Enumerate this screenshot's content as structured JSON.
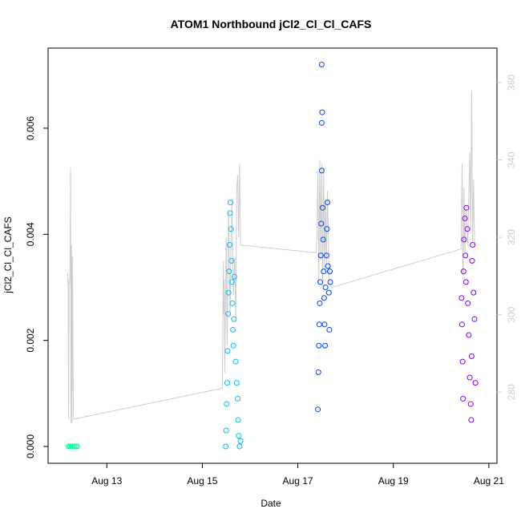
{
  "chart_data": {
    "type": "scatter",
    "title": "ATOM1 Northbound jCl2_Cl_Cl_CAFS",
    "x_label": "Date",
    "y_label": "jCl2_Cl_Cl_CAFS",
    "xlim": [
      11.77,
      21.17
    ],
    "xticks": [
      {
        "value": 13,
        "label": "Aug 13"
      },
      {
        "value": 15,
        "label": "Aug 15"
      },
      {
        "value": 17,
        "label": "Aug 17"
      },
      {
        "value": 19,
        "label": "Aug 19"
      },
      {
        "value": 21,
        "label": "Aug 21"
      }
    ],
    "ylim": [
      -0.000317,
      0.00751
    ],
    "yticks": [
      {
        "value": 0,
        "label": "0.000"
      },
      {
        "value": 0.002,
        "label": "0.002"
      },
      {
        "value": 0.004,
        "label": "0.004"
      },
      {
        "value": 0.006,
        "label": "0.006"
      }
    ],
    "y2lim": [
      261.6,
      368.9
    ],
    "y2ticks": [
      280,
      300,
      320,
      340,
      360
    ],
    "y2_color": "#cccccc",
    "series": [
      {
        "color": "#cccccc",
        "style": "line",
        "axis": "y2",
        "x": [
          12.18,
          12.19,
          12.2,
          12.21,
          12.22,
          12.23,
          12.24,
          12.25,
          12.26,
          12.27,
          12.28,
          12.3,
          15.42,
          15.44,
          15.45,
          15.46,
          15.47,
          15.5,
          15.52,
          15.55,
          15.58,
          15.6,
          15.62,
          15.65,
          15.68,
          15.7,
          15.72,
          15.74,
          15.76,
          15.78,
          15.8,
          17.38,
          17.4,
          17.42,
          17.44,
          17.46,
          17.48,
          17.5,
          17.52,
          17.54,
          17.56,
          17.58,
          17.6,
          17.62,
          17.66,
          17.7,
          20.42,
          20.44,
          20.46,
          20.48,
          20.5,
          20.52,
          20.56,
          20.6,
          20.62,
          20.64,
          20.66,
          20.68,
          20.7
        ],
        "values": [
          311,
          307,
          273,
          309,
          308,
          312,
          338,
          272,
          318,
          272,
          315,
          273,
          281,
          314,
          300,
          309,
          285,
          320,
          292,
          327,
          300,
          318,
          330,
          305,
          315,
          298,
          332,
          336,
          320,
          339,
          318,
          316,
          320,
          337,
          308,
          340,
          314,
          339,
          309,
          338,
          311,
          330,
          313,
          332,
          308,
          307,
          317,
          339,
          309,
          333,
          316,
          328,
          318,
          342,
          321,
          358,
          319,
          335,
          318
        ]
      },
      {
        "color": "#00ff99",
        "style": "points",
        "x": [
          12.2,
          12.23,
          12.26,
          12.29,
          12.32,
          12.35,
          12.38
        ],
        "values": [
          0,
          0,
          0,
          0,
          0,
          0,
          0
        ]
      },
      {
        "color": "#00bfff",
        "style": "points",
        "x": [
          15.49,
          15.5,
          15.51,
          15.52,
          15.53,
          15.54,
          15.55,
          15.56,
          15.57,
          15.58,
          15.59,
          15.6,
          15.61,
          15.62,
          15.63,
          15.64,
          15.65,
          15.66,
          15.67,
          15.7,
          15.72,
          15.74,
          15.75,
          15.76,
          15.78,
          15.8
        ],
        "values": [
          0,
          0.0003,
          0.0008,
          0.0012,
          0.0018,
          0.0025,
          0.0029,
          0.0033,
          0.0038,
          0.0044,
          0.0046,
          0.0041,
          0.0035,
          0.0031,
          0.0027,
          0.0022,
          0.0019,
          0.0024,
          0.0032,
          0.0016,
          0.0012,
          0.0009,
          0.0005,
          0.0002,
          0,
          0.0001
        ]
      },
      {
        "color": "#0040ff",
        "style": "points",
        "x": [
          17.42,
          17.43,
          17.44,
          17.45,
          17.46,
          17.47,
          17.48,
          17.49,
          17.5,
          17.5,
          17.5,
          17.51,
          17.52,
          17.53,
          17.54,
          17.55,
          17.56,
          17.57,
          17.58,
          17.6,
          17.61,
          17.62,
          17.63,
          17.65,
          17.66,
          17.67,
          17.68
        ],
        "values": [
          0.0007,
          0.0014,
          0.0019,
          0.0023,
          0.0027,
          0.0031,
          0.0036,
          0.0042,
          0.0052,
          0.0061,
          0.0072,
          0.0063,
          0.0045,
          0.0039,
          0.0033,
          0.0028,
          0.0023,
          0.0019,
          0.003,
          0.0036,
          0.0041,
          0.0046,
          0.0034,
          0.0029,
          0.0022,
          0.0033,
          0.0031
        ]
      },
      {
        "color": "#7f00ff",
        "style": "points",
        "x": [
          20.43,
          20.44,
          20.45,
          20.46,
          20.47,
          20.48,
          20.5,
          20.51,
          20.52,
          20.53,
          20.55,
          20.56,
          20.58,
          20.6,
          20.62,
          20.63,
          20.64,
          20.65,
          20.66,
          20.68,
          20.7,
          20.72
        ],
        "values": [
          0.0028,
          0.0023,
          0.0016,
          0.0009,
          0.0033,
          0.0039,
          0.0043,
          0.0036,
          0.0031,
          0.0045,
          0.0041,
          0.0027,
          0.0021,
          0.0013,
          0.0008,
          0.0005,
          0.0017,
          0.0035,
          0.0038,
          0.0029,
          0.0024,
          0.0012
        ]
      }
    ]
  }
}
